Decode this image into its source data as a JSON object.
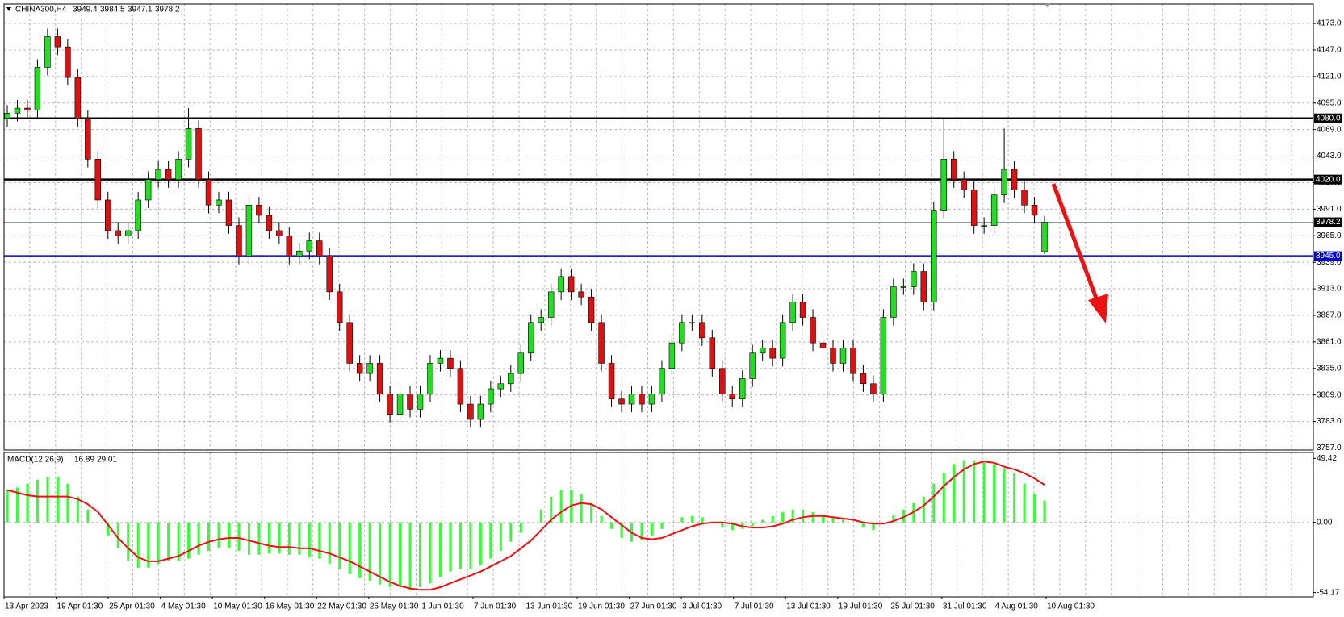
{
  "chart_data": {
    "type": "candlestick",
    "title": "CHINA300,H4",
    "open": [
      4080,
      4085,
      4090,
      4088,
      4130,
      4160,
      4150,
      4120,
      4080,
      4040,
      4000,
      3970,
      3965,
      3970,
      4000,
      4020,
      4030,
      4020,
      4040,
      4070,
      4020,
      3995,
      4000,
      3975,
      3945,
      3995,
      3985,
      3970,
      3965,
      3945,
      3950,
      3960,
      3945,
      3910,
      3880,
      3840,
      3830,
      3840,
      3810,
      3790,
      3810,
      3795,
      3810,
      3840,
      3845,
      3835,
      3800,
      3785,
      3800,
      3815,
      3820,
      3830,
      3850,
      3880,
      3885,
      3910,
      3925,
      3910,
      3905,
      3880,
      3840,
      3805,
      3800,
      3810,
      3800,
      3810,
      3835,
      3860,
      3880,
      3880,
      3865,
      3835,
      3810,
      3805,
      3825,
      3850,
      3855,
      3845,
      3880,
      3900,
      3885,
      3860,
      3855,
      3840,
      3855,
      3830,
      3820,
      3810,
      3885,
      3915,
      3915,
      3930,
      3900,
      3990,
      4040,
      4020,
      4010,
      3975,
      3975,
      4005,
      4030,
      4010,
      3995,
      3949.4
    ],
    "high": [
      4093,
      4098,
      4098,
      4138,
      4168,
      4168,
      4158,
      4128,
      4088,
      4048,
      4008,
      3978,
      3978,
      4008,
      4028,
      4038,
      4038,
      4048,
      4090,
      4078,
      4028,
      4008,
      4008,
      3983,
      4003,
      4003,
      3993,
      3978,
      3973,
      3958,
      3968,
      3968,
      3953,
      3918,
      3888,
      3848,
      3848,
      3848,
      3818,
      3818,
      3818,
      3818,
      3848,
      3853,
      3853,
      3843,
      3808,
      3808,
      3823,
      3828,
      3838,
      3858,
      3888,
      3893,
      3918,
      3933,
      3933,
      3918,
      3913,
      3888,
      3848,
      3813,
      3818,
      3818,
      3818,
      3843,
      3868,
      3888,
      3888,
      3888,
      3873,
      3843,
      3818,
      3833,
      3858,
      3863,
      3863,
      3888,
      3908,
      3908,
      3893,
      3868,
      3863,
      3863,
      3863,
      3838,
      3828,
      3893,
      3923,
      3923,
      3938,
      3938,
      3998,
      4080,
      4048,
      4028,
      4018,
      3983,
      4013,
      4070,
      4038,
      4018,
      4003,
      3984.5
    ],
    "low": [
      4072,
      4077,
      4080,
      4080,
      4122,
      4142,
      4112,
      4072,
      4032,
      3992,
      3962,
      3957,
      3957,
      3962,
      3992,
      4012,
      4012,
      4012,
      4032,
      4012,
      3987,
      3987,
      3967,
      3937,
      3937,
      3977,
      3962,
      3957,
      3937,
      3937,
      3942,
      3937,
      3902,
      3872,
      3832,
      3822,
      3822,
      3802,
      3782,
      3782,
      3787,
      3787,
      3802,
      3832,
      3827,
      3792,
      3777,
      3777,
      3792,
      3807,
      3812,
      3822,
      3842,
      3872,
      3877,
      3902,
      3902,
      3897,
      3872,
      3832,
      3797,
      3792,
      3792,
      3792,
      3792,
      3802,
      3827,
      3852,
      3872,
      3857,
      3827,
      3802,
      3797,
      3797,
      3817,
      3842,
      3837,
      3837,
      3872,
      3877,
      3852,
      3847,
      3832,
      3832,
      3822,
      3812,
      3802,
      3802,
      3877,
      3907,
      3907,
      3892,
      3892,
      3982,
      4012,
      4002,
      3967,
      3967,
      3967,
      3997,
      4002,
      3987,
      3977,
      3947.1
    ],
    "close": [
      4085,
      4090,
      4088,
      4130,
      4160,
      4150,
      4120,
      4080,
      4040,
      4000,
      3970,
      3965,
      3970,
      4000,
      4020,
      4030,
      4020,
      4040,
      4070,
      4020,
      3995,
      4000,
      3975,
      3945,
      3995,
      3985,
      3970,
      3965,
      3945,
      3950,
      3960,
      3945,
      3910,
      3880,
      3840,
      3830,
      3840,
      3810,
      3790,
      3810,
      3795,
      3810,
      3840,
      3845,
      3835,
      3800,
      3785,
      3800,
      3815,
      3820,
      3830,
      3850,
      3880,
      3885,
      3910,
      3925,
      3910,
      3905,
      3880,
      3840,
      3805,
      3800,
      3810,
      3800,
      3810,
      3835,
      3860,
      3880,
      3880,
      3865,
      3835,
      3810,
      3805,
      3825,
      3850,
      3855,
      3845,
      3880,
      3900,
      3885,
      3860,
      3855,
      3840,
      3855,
      3830,
      3820,
      3810,
      3885,
      3915,
      3915,
      3930,
      3900,
      3990,
      4040,
      4020,
      4010,
      3975,
      3975,
      4005,
      4030,
      4010,
      3995,
      3985,
      3978.2
    ],
    "up_color": "#22dd22",
    "down_color": "#dd1111",
    "ylim": [
      3755,
      4192
    ],
    "yticks": [
      {
        "value": 4173,
        "label": "4173.0"
      },
      {
        "value": 4147,
        "label": "4147.0"
      },
      {
        "value": 4121,
        "label": "4121.0"
      },
      {
        "value": 4095,
        "label": "4095.0"
      },
      {
        "value": 4069,
        "label": "4069.0"
      },
      {
        "value": 4043,
        "label": "4043.0"
      },
      {
        "value": 4017,
        "label": "4017.0"
      },
      {
        "value": 3991,
        "label": "3991.0"
      },
      {
        "value": 3965,
        "label": "3965.0"
      },
      {
        "value": 3939,
        "label": "3939.0"
      },
      {
        "value": 3913,
        "label": "3913.0"
      },
      {
        "value": 3887,
        "label": "3887.0"
      },
      {
        "value": 3861,
        "label": "3861.0"
      },
      {
        "value": 3835,
        "label": "3835.0"
      },
      {
        "value": 3809,
        "label": "3809.0"
      },
      {
        "value": 3783,
        "label": "3783.0"
      },
      {
        "value": 3757,
        "label": "3757.0"
      }
    ],
    "grid": true,
    "levels": [
      {
        "value": 4080,
        "label": "4080.0",
        "color": "#000000"
      },
      {
        "value": 4020,
        "label": "4020.0",
        "color": "#000000"
      },
      {
        "value": 3945,
        "label": "3945.0",
        "color": "#0000cc"
      }
    ],
    "x_labels": [
      "13 Apr 2023",
      "19 Apr 01:30",
      "25 Apr 01:30",
      "4 May 01:30",
      "10 May 01:30",
      "16 May 01:30",
      "22 May 01:30",
      "26 May 01:30",
      "1 Jun 01:30",
      "7 Jun 01:30",
      "13 Jun 01:30",
      "19 Jun 01:30",
      "27 Jun 01:30",
      "3 Jul 01:30",
      "7 Jul 01:30",
      "13 Jul 01:30",
      "19 Jul 01:30",
      "25 Jul 01:30",
      "31 Jul 01:30",
      "4 Aug 01:30",
      "10 Aug 01:30"
    ],
    "indicator": {
      "type": "macd",
      "name": "MACD(12,26,9)",
      "histogram": {
        "color": "#33ff33",
        "values": [
          25,
          27,
          30,
          33,
          35,
          35,
          30,
          20,
          10,
          0,
          -10,
          -20,
          -30,
          -35,
          -35,
          -32,
          -30,
          -30,
          -28,
          -25,
          -22,
          -20,
          -20,
          -22,
          -25,
          -25,
          -24,
          -24,
          -25,
          -25,
          -27,
          -28,
          -32,
          -36,
          -40,
          -43,
          -45,
          -48,
          -50,
          -50,
          -52,
          -50,
          -47,
          -42,
          -38,
          -36,
          -36,
          -33,
          -28,
          -22,
          -15,
          -8,
          0,
          10,
          20,
          25,
          25,
          22,
          15,
          5,
          -5,
          -12,
          -15,
          -14,
          -10,
          -5,
          0,
          4,
          5,
          4,
          0,
          -4,
          -6,
          -5,
          -3,
          2,
          5,
          8,
          10,
          10,
          8,
          6,
          4,
          3,
          0,
          -4,
          -6,
          0,
          6,
          10,
          15,
          20,
          30,
          38,
          45,
          48,
          48,
          46,
          45,
          42,
          38,
          30,
          22,
          16.89
        ]
      },
      "signal": {
        "color": "#ee1111",
        "values": [
          25,
          23,
          21,
          20,
          20,
          20,
          20,
          18,
          14,
          8,
          -2,
          -12,
          -20,
          -27,
          -30,
          -30,
          -28,
          -26,
          -22,
          -18,
          -15,
          -13,
          -12,
          -12,
          -14,
          -16,
          -18,
          -19,
          -19,
          -20,
          -20,
          -22,
          -24,
          -27,
          -30,
          -34,
          -38,
          -42,
          -46,
          -49,
          -51,
          -52,
          -52,
          -50,
          -47,
          -44,
          -41,
          -38,
          -34,
          -30,
          -26,
          -20,
          -14,
          -6,
          2,
          8,
          13,
          15,
          14,
          10,
          4,
          -2,
          -8,
          -12,
          -13,
          -12,
          -9,
          -6,
          -3,
          -1,
          0,
          0,
          -1,
          -3,
          -4,
          -4,
          -3,
          -1,
          2,
          4,
          5,
          5,
          4,
          3,
          2,
          0,
          -1,
          -1,
          1,
          4,
          8,
          13,
          20,
          28,
          35,
          41,
          45,
          47,
          46,
          43,
          41,
          38,
          34,
          29.01
        ]
      },
      "ylim": [
        -57.5,
        54
      ],
      "yticks": [
        49.42,
        {
          "value": 0,
          "label": "0.00"
        },
        -54.17
      ]
    }
  }
}
